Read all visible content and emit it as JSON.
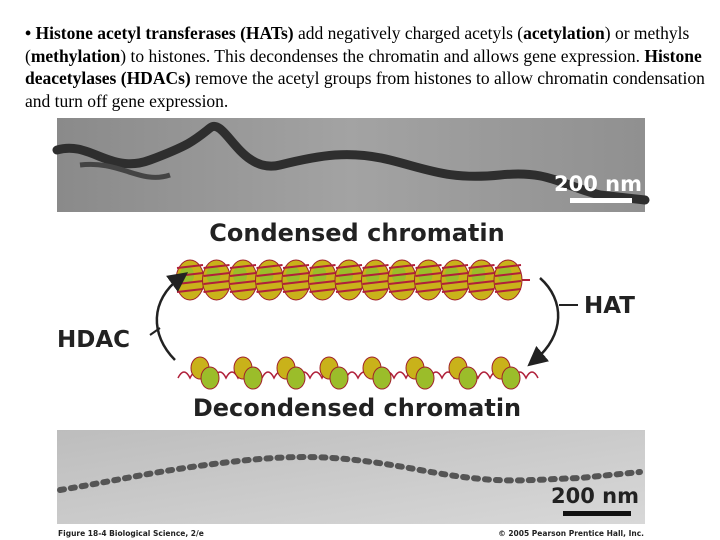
{
  "text": {
    "runs": [
      {
        "text": "• Histone acetyl transferases (HATs)",
        "bold": true
      },
      {
        "text": " add negatively charged acetyls (",
        "bold": false
      },
      {
        "text": "acetylation",
        "bold": true
      },
      {
        "text": ") or methyls (",
        "bold": false
      },
      {
        "text": "methylation",
        "bold": true
      },
      {
        "text": ") to histones. This decondenses the chromatin and allows gene expression. ",
        "bold": false
      },
      {
        "text": "Histone deacetylases (HDACs)",
        "bold": true
      },
      {
        "text": " remove the acetyl groups from histones to allow chromatin condensation and turn off gene expression.",
        "bold": false
      }
    ]
  },
  "figure": {
    "top_scale": "200 nm",
    "condensed": "Condensed chromatin",
    "hdac": "HDAC",
    "hat": "HAT",
    "decondensed": "Decondensed chromatin",
    "bottom_scale": "200 nm",
    "caption_left": "Figure 18-4 Biological Science, 2/e",
    "caption_right": "© 2005 Pearson Prentice Hall, Inc."
  }
}
